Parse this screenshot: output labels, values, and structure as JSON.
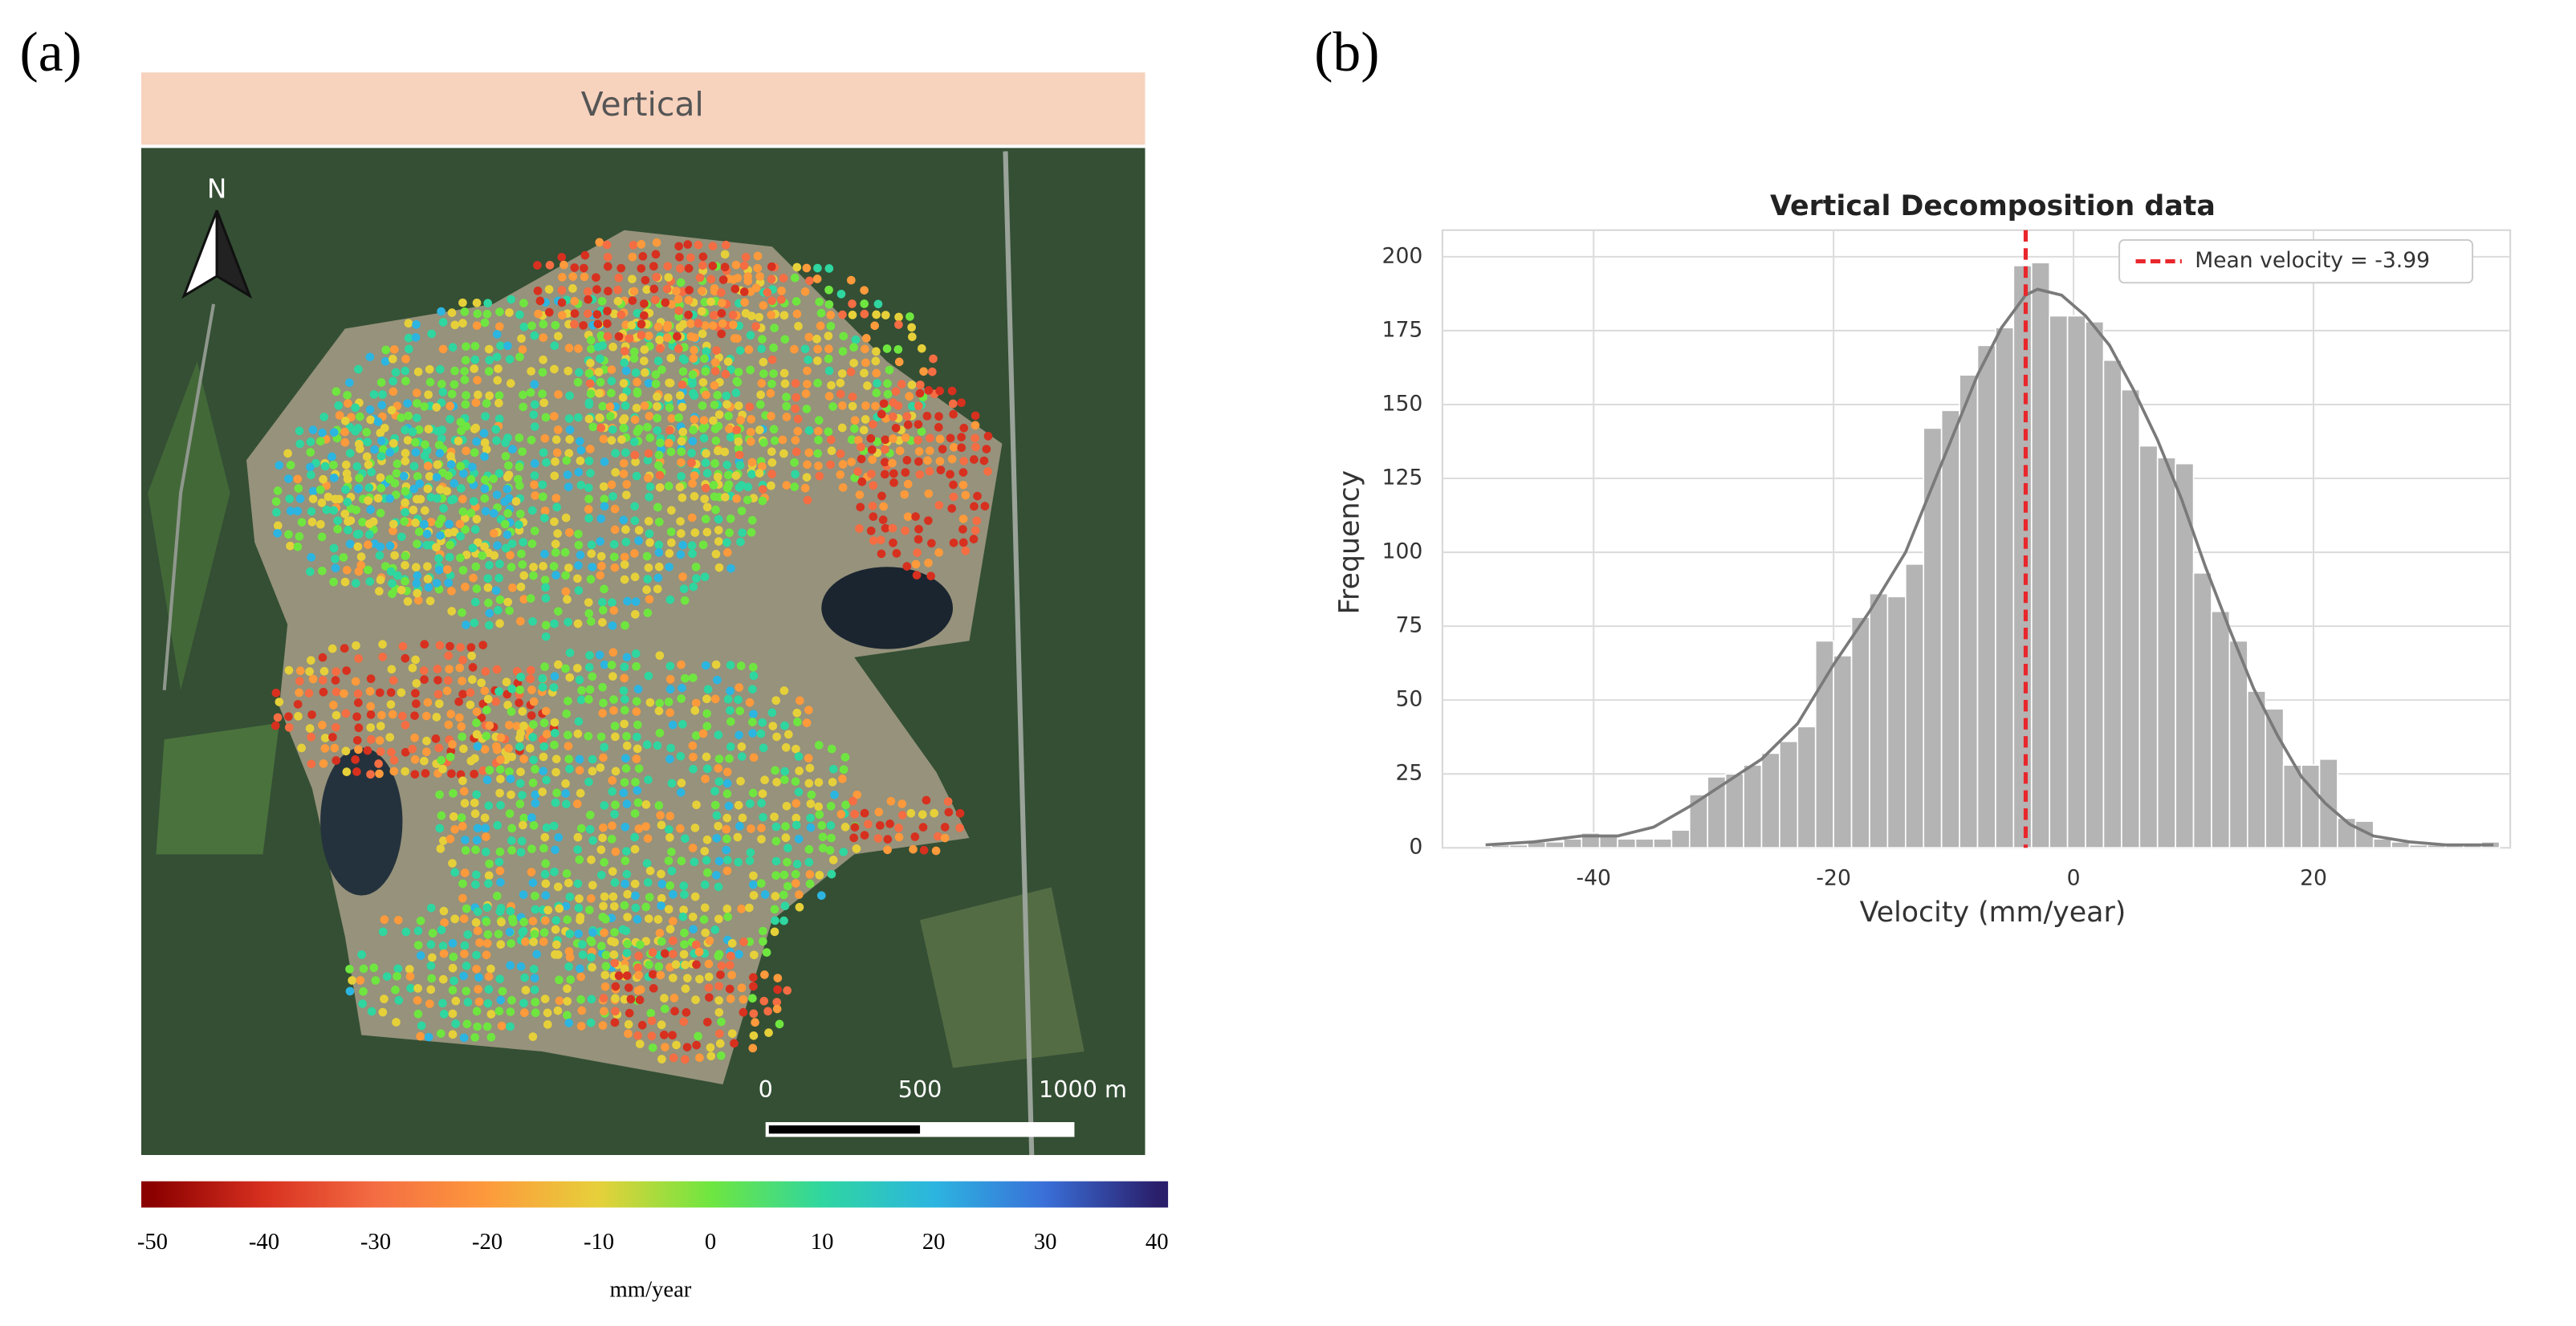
{
  "chart_data": [
    {
      "type": "map",
      "panel_label": "(a)",
      "title": "Vertical",
      "north_label": "N",
      "scale_bar_labels": [
        "0",
        "500",
        "1000 m"
      ],
      "colorbar": {
        "ticks": [
          -50,
          -40,
          -30,
          -20,
          -10,
          0,
          10,
          20,
          30,
          40
        ],
        "lim": [
          -51,
          41
        ],
        "colors": [
          "#8b0000",
          "#d7301f",
          "#f46d43",
          "#fd9a3c",
          "#e6d03a",
          "#6fe640",
          "#2fd6a0",
          "#2cb5e0",
          "#3a6fd8",
          "#2a1f6b"
        ],
        "label": "mm/year"
      }
    },
    {
      "type": "histogram",
      "panel_label": "(b)",
      "title": "Vertical Decomposition data",
      "x_label": "Velocity (mm/year)",
      "y_label": "Frequency",
      "color": "#b4b4b4",
      "bins": [
        -48.5,
        -47,
        -45.5,
        -44,
        -42.5,
        -41,
        -39.5,
        -38,
        -36.5,
        -35,
        -33.5,
        -32,
        -30.5,
        -29,
        -27.5,
        -26,
        -24.5,
        -23,
        -21.5,
        -20,
        -18.5,
        -17,
        -15.5,
        -14,
        -12.5,
        -11,
        -9.5,
        -8,
        -6.5,
        -5,
        -3.5,
        -2,
        -0.5,
        1,
        2.5,
        4,
        5.5,
        7,
        8.5,
        10,
        11.5,
        13,
        14.5,
        16,
        17.5,
        19,
        20.5,
        22,
        23.5,
        25,
        26.5,
        28,
        29.5,
        31,
        32.5,
        34,
        35.5
      ],
      "values": [
        1,
        1,
        2,
        2,
        3,
        5,
        4,
        3,
        3,
        3,
        6,
        18,
        24,
        25,
        28,
        32,
        36,
        41,
        70,
        65,
        78,
        86,
        85,
        96,
        142,
        148,
        160,
        170,
        176,
        197,
        198,
        180,
        180,
        178,
        165,
        155,
        136,
        132,
        130,
        93,
        80,
        70,
        53,
        47,
        28,
        28,
        30,
        10,
        9,
        3,
        2,
        1,
        1,
        1,
        1,
        2
      ],
      "kde": {
        "color": "#7a7a7a",
        "x": [
          -49,
          -45,
          -41,
          -38,
          -35,
          -32,
          -29,
          -26,
          -23,
          -20,
          -17,
          -14,
          -11,
          -8,
          -6,
          -4,
          -3,
          -1,
          1,
          3,
          5,
          7,
          9,
          11,
          13,
          15,
          17,
          19,
          21,
          23,
          25,
          28,
          31,
          35
        ],
        "values": [
          1,
          2,
          4,
          4,
          7,
          14,
          22,
          30,
          42,
          62,
          80,
          100,
          130,
          160,
          176,
          187,
          189,
          187,
          180,
          170,
          155,
          138,
          118,
          95,
          74,
          54,
          38,
          24,
          15,
          8,
          4,
          2,
          1,
          1
        ]
      },
      "mean_line": {
        "name": "Mean velocity = -3.99",
        "value": -3.99,
        "color": "#e8262b"
      },
      "legend": "upper right",
      "grid": true,
      "xlim": [
        -52.6,
        36.4
      ],
      "ylim": [
        0,
        209
      ],
      "xticks": [
        -40,
        -20,
        0,
        20
      ],
      "yticks": [
        0,
        25,
        50,
        75,
        100,
        125,
        150,
        175,
        200
      ]
    }
  ]
}
